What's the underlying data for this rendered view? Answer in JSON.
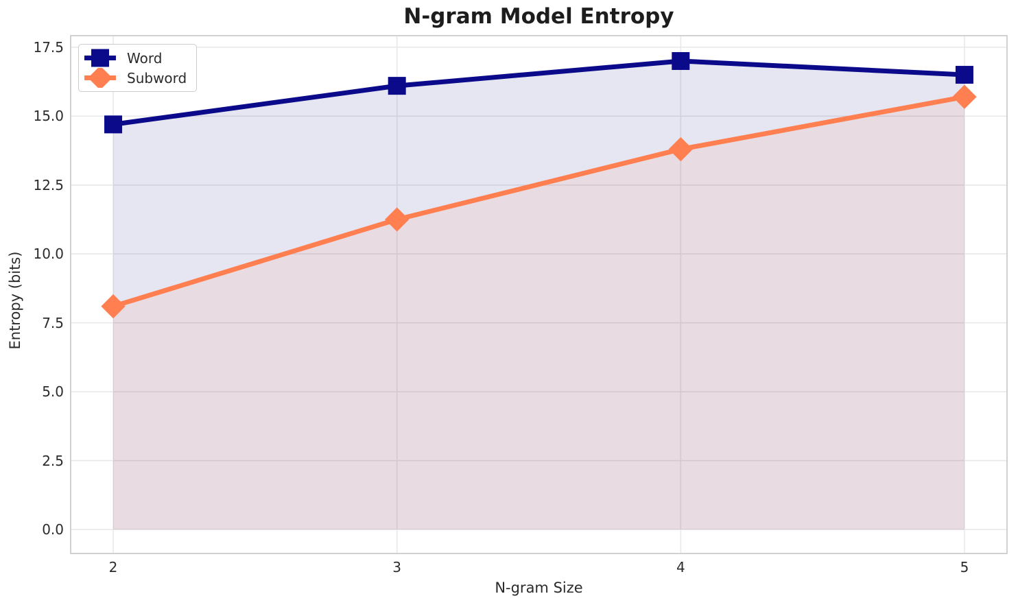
{
  "figure": {
    "title": "N-gram Model Entropy"
  },
  "chart_data": {
    "type": "line",
    "title": "N-gram Model Entropy",
    "xlabel": "N-gram Size",
    "ylabel": "Entropy (bits)",
    "x": [
      2,
      3,
      4,
      5
    ],
    "series": [
      {
        "name": "Word",
        "values": [
          14.7,
          16.1,
          17.0,
          16.5
        ],
        "color": "#0a0a8a",
        "marker": "square",
        "line_width": 7,
        "fill_to_zero": true,
        "fill_opacity": 0.1
      },
      {
        "name": "Subword",
        "values": [
          8.1,
          11.25,
          13.8,
          15.7
        ],
        "color": "#ff7f50",
        "marker": "diamond",
        "line_width": 7,
        "fill_to_zero": true,
        "fill_opacity": 0.1
      }
    ],
    "xticks": [
      2,
      3,
      4,
      5
    ],
    "xtick_labels": [
      "2",
      "3",
      "4",
      "5"
    ],
    "yticks": [
      0,
      2.5,
      5,
      7.5,
      10,
      12.5,
      15,
      17.5
    ],
    "ytick_labels": [
      "0.0",
      "2.5",
      "5.0",
      "7.5",
      "10.0",
      "12.5",
      "15.0",
      "17.5"
    ],
    "xlim": [
      1.85,
      5.15
    ],
    "ylim": [
      -0.87,
      17.92
    ],
    "grid": true,
    "legend": {
      "position": "upper left",
      "entries": [
        "Word",
        "Subword"
      ]
    }
  },
  "colors": {
    "grid": "#e8e8e8",
    "spine": "#cccccc",
    "tick_text": "#2b2b2b",
    "background": "#ffffff"
  }
}
